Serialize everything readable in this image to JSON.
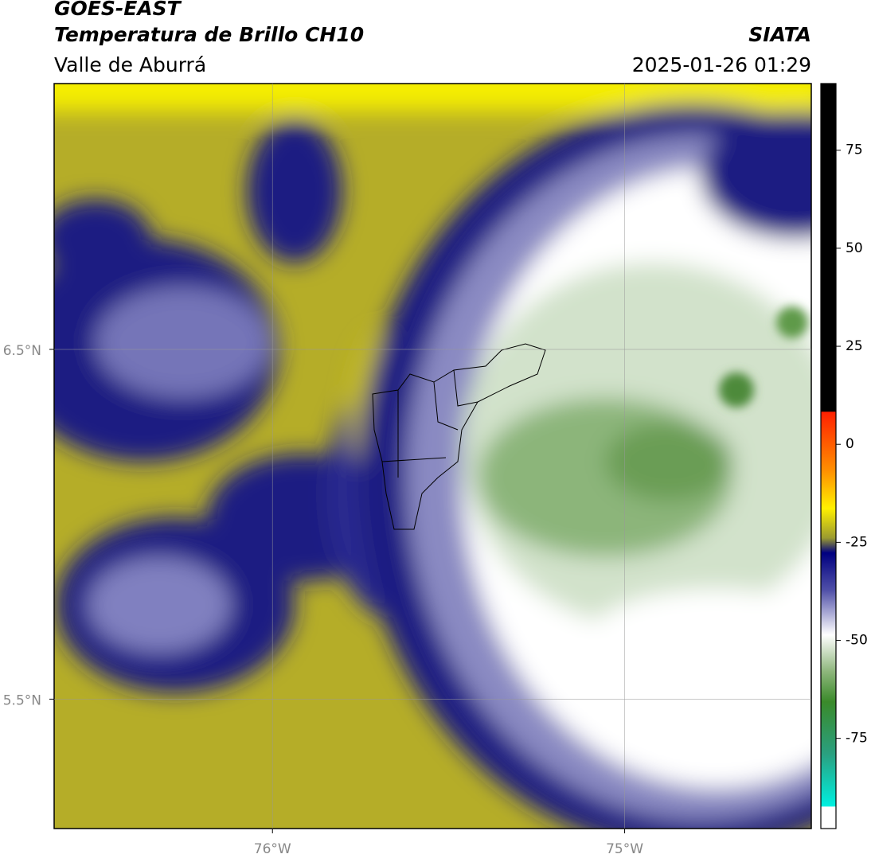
{
  "header": {
    "satellite": "GOES-EAST",
    "product": "Temperatura de Brillo CH10",
    "region": "Valle de Aburrá",
    "agency": "SIATA",
    "datetime": "2025-01-26 01:29"
  },
  "map": {
    "lon_lim": [
      -76.62,
      -74.47
    ],
    "lat_lim": [
      5.13,
      7.26
    ],
    "lat_ticks": [
      {
        "value": 6.5,
        "label": "6.5°N"
      },
      {
        "value": 5.5,
        "label": "5.5°N"
      }
    ],
    "lon_ticks": [
      {
        "value": -76,
        "label": "76°W"
      },
      {
        "value": -75,
        "label": "75°W"
      }
    ],
    "grid": true
  },
  "colorbar": {
    "lim": [
      -98,
      92
    ],
    "ticks": [
      75,
      50,
      25,
      0,
      -25,
      -50,
      -75
    ]
  }
}
